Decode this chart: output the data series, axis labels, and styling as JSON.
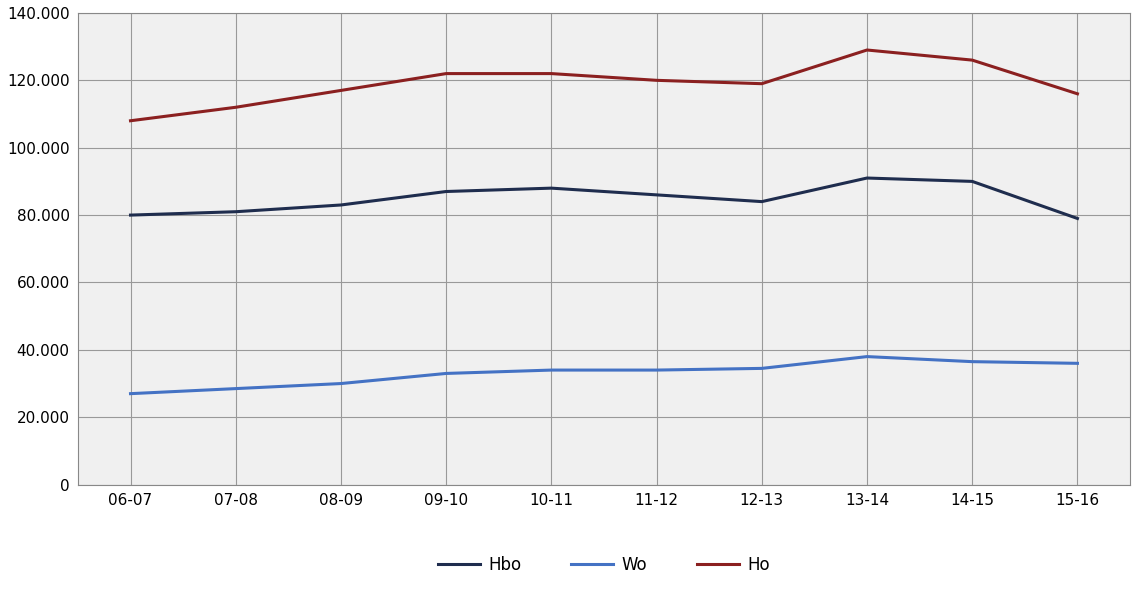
{
  "x_labels": [
    "06-07",
    "07-08",
    "08-09",
    "09-10",
    "10-11",
    "11-12",
    "12-13",
    "13-14",
    "14-15",
    "15-16"
  ],
  "hbo": [
    80000,
    81000,
    83000,
    87000,
    88000,
    86000,
    84000,
    91000,
    90000,
    79000
  ],
  "wo": [
    27000,
    28500,
    30000,
    33000,
    34000,
    34000,
    34500,
    38000,
    36500,
    36000
  ],
  "ho": [
    108000,
    112000,
    117000,
    122000,
    122000,
    120000,
    119000,
    129000,
    126000,
    116000
  ],
  "hbo_color": "#1f2d4e",
  "wo_color": "#4472c4",
  "ho_color": "#8b2020",
  "ylim": [
    0,
    140000
  ],
  "yticks": [
    0,
    20000,
    40000,
    60000,
    80000,
    100000,
    120000,
    140000
  ],
  "legend_labels": [
    "Hbo",
    "Wo",
    "Ho"
  ],
  "line_width": 2.2,
  "grid_color": "#999999",
  "background_color": "#ffffff",
  "plot_bg_color": "#f0f0f0"
}
